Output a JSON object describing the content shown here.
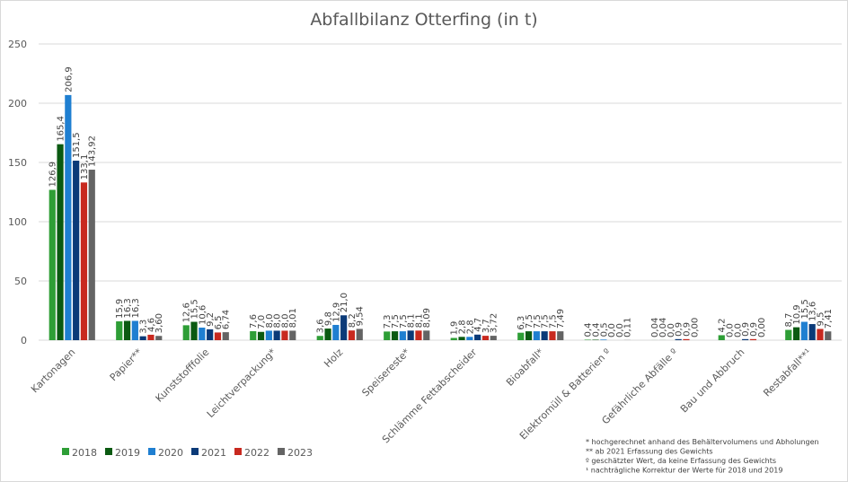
{
  "chart_data": {
    "type": "bar",
    "title": "Abfallbilanz Otterfing (in t)",
    "xlabel": "",
    "ylabel": "",
    "ylim": [
      0,
      250
    ],
    "yticks": [
      0,
      50,
      100,
      150,
      200,
      250
    ],
    "grid": true,
    "legend_position": "bottom-left",
    "categories": [
      "Kartonagen",
      "Papier**",
      "Kunststofffolie",
      "Leichtverpackung*",
      "Holz",
      "Speisereste*",
      "Schlämme Fettabscheider",
      "Bioabfall*",
      "Elektromüll & Batterien º",
      "Gefährliche Abfälle º",
      "Bau und Abbruch",
      "Restabfall**¹"
    ],
    "series": [
      {
        "name": "2018",
        "color": "#2e9e36",
        "values": [
          126.9,
          15.9,
          12.6,
          7.6,
          3.6,
          7.3,
          1.9,
          6.3,
          0.4,
          0.04,
          4.2,
          8.7
        ],
        "labels": [
          "126,9",
          "15,9",
          "12,6",
          "7,6",
          "3,6",
          "7,3",
          "1,9",
          "6,3",
          "0,4",
          "0,04",
          "4,2",
          "8,7"
        ]
      },
      {
        "name": "2019",
        "color": "#0b5a12",
        "values": [
          165.4,
          16.3,
          15.5,
          7.0,
          9.8,
          7.5,
          2.8,
          7.5,
          0.4,
          0.04,
          0.0,
          10.9
        ],
        "labels": [
          "165,4",
          "16,3",
          "15,5",
          "7,0",
          "9,8",
          "7,5",
          "2,8",
          "7,5",
          "0,4",
          "0,04",
          "0,0",
          "10,9"
        ]
      },
      {
        "name": "2020",
        "color": "#1f7fd1",
        "values": [
          206.9,
          16.3,
          10.6,
          8.0,
          12.9,
          7.5,
          2.8,
          7.5,
          0.5,
          0.0,
          0.0,
          15.5
        ],
        "labels": [
          "206,9",
          "16,3",
          "10,6",
          "8,0",
          "12,9",
          "7,5",
          "2,8",
          "7,5",
          "0,5",
          "0,0",
          "0,0",
          "15,5"
        ]
      },
      {
        "name": "2021",
        "color": "#0b3a78",
        "values": [
          151.5,
          3.3,
          9.2,
          8.0,
          21.0,
          8.1,
          4.7,
          7.5,
          0.0,
          0.9,
          0.9,
          13.6
        ],
        "labels": [
          "151,5",
          "3,3",
          "9,2",
          "8,0",
          "21,0",
          "8,1",
          "4,7",
          "7,5",
          "0,0",
          "0,9",
          "0,9",
          "13,6"
        ]
      },
      {
        "name": "2022",
        "color": "#c8291f",
        "values": [
          133.1,
          4.6,
          6.5,
          8.0,
          8.2,
          8.1,
          3.7,
          7.5,
          0.0,
          0.9,
          0.9,
          9.5
        ],
        "labels": [
          "133,1",
          "4,6",
          "6,5",
          "8,0",
          "8,2",
          "8,1",
          "3,7",
          "7,5",
          "0,0",
          "0,9",
          "0,9",
          "9,5"
        ]
      },
      {
        "name": "2023",
        "color": "#646464",
        "values": [
          143.92,
          3.6,
          6.74,
          8.01,
          9.54,
          8.09,
          3.72,
          7.49,
          0.11,
          0.0,
          0.0,
          7.41
        ],
        "labels": [
          "143,92",
          "3,60",
          "6,74",
          "8,01",
          "9,54",
          "8,09",
          "3,72",
          "7,49",
          "0,11",
          "0,00",
          "0,00",
          "7,41"
        ]
      }
    ],
    "footnotes": [
      "* hochgerechnet anhand des Behältervolumens und Abholungen",
      "** ab 2021 Erfassung des Gewichts",
      "º geschätzter Wert, da keine Erfassung des Gewichts",
      "¹ nachträgliche Korrektur der Werte für 2018 und 2019"
    ],
    "gridline_color": "#d9d9d9"
  }
}
